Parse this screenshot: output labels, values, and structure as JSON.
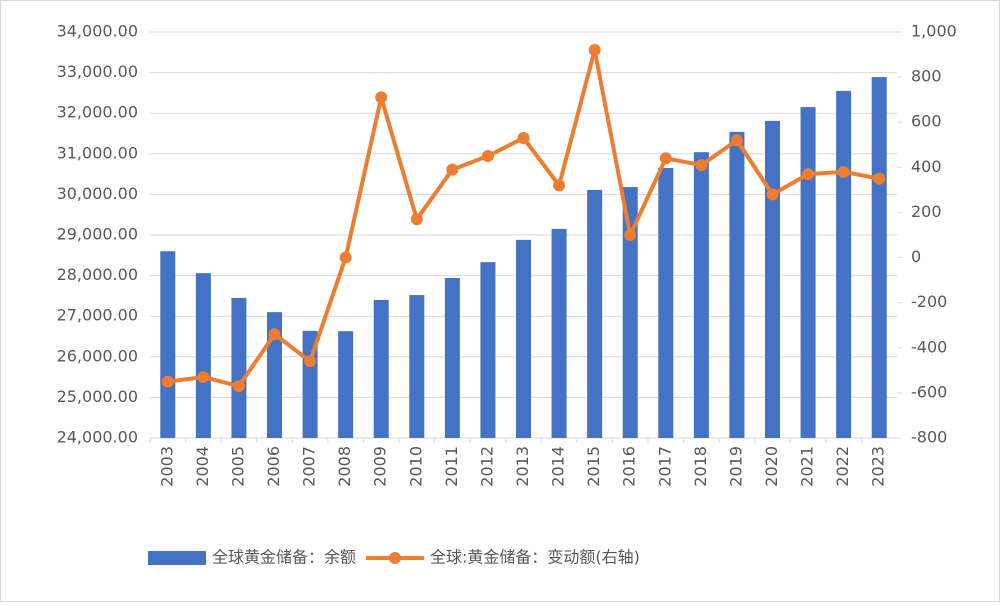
{
  "chart_data": {
    "type": "bar",
    "categories": [
      "2003",
      "2004",
      "2005",
      "2006",
      "2007",
      "2008",
      "2009",
      "2010",
      "2011",
      "2012",
      "2013",
      "2014",
      "2015",
      "2016",
      "2017",
      "2018",
      "2019",
      "2020",
      "2021",
      "2022",
      "2023"
    ],
    "series": [
      {
        "name": "全球黄金储备：余额",
        "type": "bar",
        "color": "#4472c4",
        "values": [
          28600,
          28060,
          27450,
          27100,
          26640,
          26630,
          27400,
          27520,
          27940,
          28330,
          28880,
          29150,
          30110,
          30180,
          30650,
          31040,
          31540,
          31810,
          32150,
          32550,
          32890
        ]
      },
      {
        "name": "全球:黄金储备：变动额(右轴)",
        "type": "line",
        "axis": "y2",
        "color": "#ed7d31",
        "values": [
          -550,
          -530,
          -570,
          -340,
          -460,
          0,
          710,
          170,
          390,
          450,
          530,
          320,
          920,
          100,
          440,
          410,
          520,
          280,
          370,
          380,
          350
        ]
      }
    ],
    "ylim": [
      24000,
      34000
    ],
    "yticks": [
      {
        "value": 24000,
        "label": "24,000.00"
      },
      {
        "value": 25000,
        "label": "25,000.00"
      },
      {
        "value": 26000,
        "label": "26,000.00"
      },
      {
        "value": 27000,
        "label": "27,000.00"
      },
      {
        "value": 28000,
        "label": "28,000.00"
      },
      {
        "value": 29000,
        "label": "29,000.00"
      },
      {
        "value": 30000,
        "label": "30,000.00"
      },
      {
        "value": 31000,
        "label": "31,000.00"
      },
      {
        "value": 32000,
        "label": "32,000.00"
      },
      {
        "value": 33000,
        "label": "33,000.00"
      },
      {
        "value": 34000,
        "label": "34,000.00"
      }
    ],
    "y2lim": [
      -800,
      1000
    ],
    "y2ticks": [
      -800,
      -600,
      -400,
      -200,
      0,
      200,
      400,
      600,
      800,
      {
        "value": 1000,
        "label": "1,000"
      }
    ],
    "grid": true
  }
}
